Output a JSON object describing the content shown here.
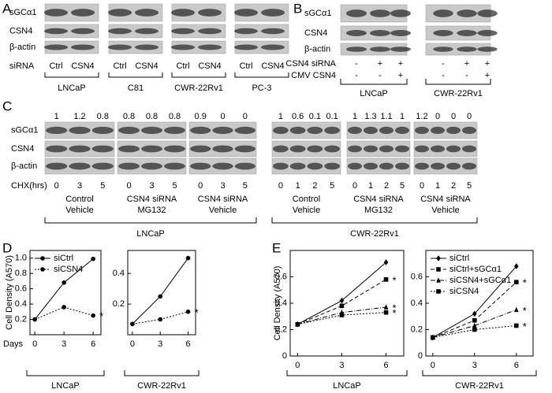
{
  "panel_a": {
    "letter": "A",
    "rows": [
      "sGCα1",
      "CSN4",
      "β-actin"
    ],
    "lane_row_label": "siRNA",
    "groups": [
      {
        "name": "LNCaP",
        "lanes": [
          "Ctrl",
          "CSN4"
        ]
      },
      {
        "name": "C81",
        "lanes": [
          "Ctrl",
          "CSN4"
        ]
      },
      {
        "name": "CWR-22Rv1",
        "lanes": [
          "Ctrl",
          "CSN4"
        ]
      },
      {
        "name": "PC-3",
        "lanes": [
          "Ctrl",
          "CSN4"
        ]
      }
    ]
  },
  "panel_b": {
    "letter": "B",
    "rows": [
      "sGCα1",
      "CSN4",
      "β-actin"
    ],
    "treatments": [
      {
        "label": "CSN4 siRNA",
        "groups": [
          [
            "-",
            "+",
            "+"
          ],
          [
            "-",
            "+",
            "+"
          ]
        ]
      },
      {
        "label": "CMV CSN4",
        "groups": [
          [
            "-",
            "-",
            "+"
          ],
          [
            "-",
            "-",
            "+"
          ]
        ]
      }
    ],
    "groups": [
      "LNCaP",
      "CWR-22Rv1"
    ]
  },
  "panel_c": {
    "letter": "C",
    "rows": [
      "sGCα1",
      "CSN4",
      "β-actin"
    ],
    "lane_row_label": "CHX(hrs)",
    "cell_lines": [
      {
        "name": "LNCaP",
        "conditions": [
          {
            "label": [
              "Control",
              "Vehicle"
            ],
            "intensities": [
              1,
              1.2,
              0.8
            ],
            "lanes": [
              0,
              3,
              5
            ]
          },
          {
            "label": [
              "CSN4 siRNA",
              "MG132"
            ],
            "intensities": [
              0.8,
              0.8,
              0.8
            ],
            "lanes": [
              0,
              3,
              5
            ]
          },
          {
            "label": [
              "CSN4 siRNA",
              "Vehicle"
            ],
            "intensities": [
              0.9,
              0,
              0
            ],
            "lanes": [
              0,
              3,
              5
            ]
          }
        ]
      },
      {
        "name": "CWR-22Rv1",
        "conditions": [
          {
            "label": [
              "Control",
              "Vehicle"
            ],
            "intensities": [
              1,
              0.6,
              0.1,
              0.1
            ],
            "lanes": [
              0,
              1,
              2,
              5
            ]
          },
          {
            "label": [
              "CSN4 siRNA",
              "MG132"
            ],
            "intensities": [
              1,
              1.3,
              1.1,
              1
            ],
            "lanes": [
              0,
              1,
              2,
              5
            ]
          },
          {
            "label": [
              "CSN4 siRNA",
              "Vehicle"
            ],
            "intensities": [
              1.2,
              0,
              0,
              0
            ],
            "lanes": [
              0,
              1,
              2,
              5
            ]
          }
        ]
      }
    ]
  },
  "chart_data": [
    {
      "type": "line",
      "panel_letter": "D",
      "ylabel": "Cell Density (A570)",
      "xlabel": "Days",
      "group_label": "LNCaP",
      "x": [
        0,
        3,
        6
      ],
      "xticks": [
        0,
        3,
        6
      ],
      "xlim": [
        -0.5,
        6.8
      ],
      "ylim": [
        0,
        1.1
      ],
      "yticks": [
        0.2,
        0.4,
        0.6,
        0.8,
        {
          "value": 1,
          "label": "1.0"
        }
      ],
      "legend": true,
      "series": [
        {
          "name": "siCtrl",
          "color": "#000000",
          "line_style": "solid",
          "marker": "circle",
          "values": [
            0.2,
            0.68,
            0.99
          ]
        },
        {
          "name": "siCSN4",
          "color": "#000000",
          "line_style": "dotted",
          "marker": "circle",
          "values": [
            0.2,
            0.36,
            0.25
          ],
          "annotation": "*"
        }
      ]
    },
    {
      "type": "line",
      "group_label": "CWR-22Rv1",
      "x": [
        0,
        3,
        6
      ],
      "xticks": [
        0,
        3,
        6
      ],
      "xlim": [
        -0.5,
        6.8
      ],
      "ylim": [
        0,
        0.55
      ],
      "yticks": [
        0.2,
        0.4
      ],
      "legend": false,
      "series": [
        {
          "name": "siCtrl",
          "color": "#000000",
          "line_style": "solid",
          "marker": "circle",
          "values": [
            0.07,
            0.25,
            0.5
          ]
        },
        {
          "name": "siCSN4",
          "color": "#000000",
          "line_style": "dotted",
          "marker": "circle",
          "values": [
            0.07,
            0.1,
            0.15
          ],
          "annotation": "*"
        }
      ]
    },
    {
      "type": "line",
      "panel_letter": "E",
      "ylabel": "Cell Density (A570)",
      "group_label": "LNCaP",
      "x": [
        0,
        3,
        6
      ],
      "xticks": [
        0,
        3,
        6
      ],
      "xlim": [
        -0.5,
        7.2
      ],
      "ylim": [
        0,
        0.8
      ],
      "yticks": [
        0,
        0.2,
        0.4,
        0.6
      ],
      "legend": false,
      "series": [
        {
          "name": "siCtrl",
          "color": "#000000",
          "line_style": "solid",
          "marker": "diamond",
          "values": [
            0.24,
            0.42,
            0.71
          ]
        },
        {
          "name": "siCtrl+sGCα1",
          "color": "#000000",
          "line_style": "dashed",
          "marker": "square",
          "values": [
            0.24,
            0.38,
            0.58
          ],
          "annotation": "*"
        },
        {
          "name": "siCSN4+sGCα1",
          "color": "#000000",
          "line_style": "dashdot",
          "marker": "triangle",
          "values": [
            0.24,
            0.33,
            0.37
          ],
          "annotation": "*"
        },
        {
          "name": "siCSN4",
          "color": "#000000",
          "line_style": "dotted",
          "marker": "square",
          "values": [
            0.24,
            0.31,
            0.33
          ],
          "annotation": "*"
        }
      ]
    },
    {
      "type": "line",
      "group_label": "CWR-22Rv1",
      "x": [
        0,
        3,
        6
      ],
      "xticks": [
        0,
        3,
        6
      ],
      "xlim": [
        -0.5,
        7.2
      ],
      "ylim": [
        0,
        0.8
      ],
      "yticks": [
        0,
        0.2,
        0.4,
        0.6
      ],
      "legend": true,
      "series": [
        {
          "name": "siCtrl",
          "color": "#000000",
          "line_style": "solid",
          "marker": "diamond",
          "values": [
            0.14,
            0.32,
            0.68
          ]
        },
        {
          "name": "siCtrl+sGCα1",
          "color": "#000000",
          "line_style": "dashed",
          "marker": "square",
          "values": [
            0.14,
            0.27,
            0.56
          ],
          "annotation": "*"
        },
        {
          "name": "siCSN4+sGCα1",
          "color": "#000000",
          "line_style": "dashdot",
          "marker": "triangle",
          "values": [
            0.14,
            0.23,
            0.35
          ],
          "annotation": "*"
        },
        {
          "name": "siCSN4",
          "color": "#000000",
          "line_style": "dotted",
          "marker": "square",
          "values": [
            0.14,
            0.2,
            0.23
          ],
          "annotation": "*"
        }
      ]
    }
  ]
}
